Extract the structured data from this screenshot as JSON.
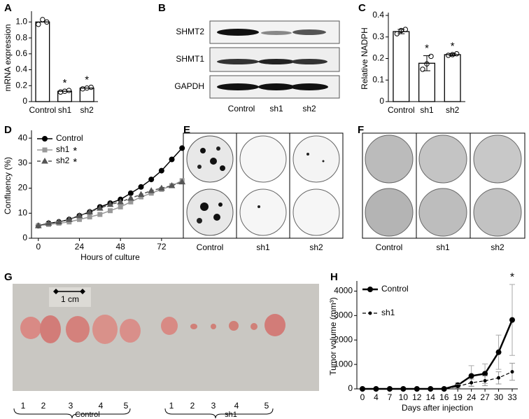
{
  "chart_data": [
    {
      "type": "bar",
      "panel": "A",
      "ylabel": "mRNA expression",
      "categories": [
        "Control",
        "sh1",
        "sh2"
      ],
      "values": [
        1.0,
        0.13,
        0.17
      ],
      "points": [
        [
          0.97,
          1.03,
          1.0
        ],
        [
          0.12,
          0.13,
          0.14
        ],
        [
          0.16,
          0.17,
          0.18
        ]
      ],
      "significance": [
        null,
        "*",
        "*"
      ],
      "color": "#ffffff",
      "ylim": [
        0,
        1.1
      ],
      "yticks": [
        0,
        0.2,
        0.4,
        0.6,
        0.8,
        {
          "value": 1,
          "label": "1.0"
        }
      ]
    },
    {
      "type": "bar",
      "panel": "C",
      "ylabel": "Relative NADPH",
      "categories": [
        "Control",
        "sh1",
        "sh2"
      ],
      "values": [
        0.325,
        0.178,
        0.218
      ],
      "errors": [
        0.01,
        0.035,
        0.005
      ],
      "points": [
        [
          0.315,
          0.33,
          0.335
        ],
        [
          0.15,
          0.175,
          0.21
        ],
        [
          0.215,
          0.218,
          0.222
        ]
      ],
      "significance": [
        null,
        "*",
        "*"
      ],
      "color": "#ffffff",
      "ylim": [
        0,
        0.4
      ],
      "yticks": [
        0,
        0.1,
        0.2,
        0.3,
        0.4
      ]
    },
    {
      "type": "line",
      "panel": "D",
      "xlabel": "Hours of culture",
      "ylabel": "Confluency (%)",
      "x": [
        0,
        6,
        12,
        18,
        24,
        30,
        36,
        42,
        48,
        54,
        60,
        66,
        72,
        78,
        84
      ],
      "xlim": [
        -4,
        88
      ],
      "xticks": [
        0,
        24,
        48,
        72
      ],
      "ylim": [
        0,
        42
      ],
      "yticks": [
        0,
        10,
        20,
        30,
        40
      ],
      "legend": "upper left",
      "series": [
        {
          "name": "Control",
          "color": "#000000",
          "marker": "circle",
          "values": [
            5,
            6,
            6.5,
            7.5,
            9,
            10.5,
            12.5,
            14,
            15.5,
            18,
            20.5,
            23.5,
            27,
            31.5,
            36
          ]
        },
        {
          "name": "sh1",
          "note": "*",
          "color": "#999999",
          "marker": "square",
          "values": [
            5,
            5.5,
            6,
            6.5,
            7.5,
            8.5,
            9.5,
            11,
            12.5,
            14.5,
            16.5,
            18,
            19.5,
            21,
            23
          ]
        },
        {
          "name": "sh2",
          "note": "*",
          "color": "#555555",
          "marker": "triangle",
          "dash": true,
          "values": [
            5,
            6,
            6.5,
            7.5,
            9,
            10.5,
            12,
            13.5,
            14.5,
            16,
            17.5,
            19,
            20,
            21,
            22.5
          ]
        }
      ]
    },
    {
      "type": "line",
      "panel": "H",
      "xlabel": "Days after injection",
      "ylabel": "Tumor volume (mm³)",
      "categories": [
        "0",
        "4",
        "7",
        "10",
        "12",
        "14",
        "16",
        "19",
        "24",
        "27",
        "30",
        "33"
      ],
      "ylim": [
        0,
        4300
      ],
      "yticks": [
        0,
        1000,
        2000,
        3000,
        4000
      ],
      "legend": "upper left",
      "annotation": "*",
      "series": [
        {
          "name": "Control",
          "color": "#000000",
          "marker": "circle",
          "width": 2.5,
          "values": [
            0,
            0,
            0,
            0,
            0,
            0,
            0,
            150,
            530,
            620,
            1500,
            2820
          ],
          "errors": [
            0,
            0,
            0,
            0,
            0,
            0,
            0,
            100,
            420,
            400,
            700,
            1450
          ]
        },
        {
          "name": "sh1",
          "color": "#000000",
          "marker": "dot",
          "dash": true,
          "width": 1.2,
          "values": [
            0,
            0,
            0,
            0,
            0,
            0,
            0,
            100,
            250,
            330,
            450,
            700
          ],
          "errors": [
            0,
            0,
            0,
            0,
            0,
            0,
            0,
            80,
            150,
            200,
            250,
            350
          ]
        }
      ]
    }
  ],
  "panels": {
    "B": {
      "letter": "B",
      "rows": [
        "SHMT2",
        "SHMT1",
        "GAPDH"
      ],
      "lanes": [
        "Control",
        "sh1",
        "sh2"
      ]
    },
    "E": {
      "letter": "E",
      "lanes": [
        "Control",
        "sh1",
        "sh2"
      ]
    },
    "F": {
      "letter": "F",
      "lanes": [
        "Control",
        "sh1",
        "sh2"
      ]
    },
    "G": {
      "letter": "G",
      "scale": "1 cm",
      "numbers": [
        "1",
        "2",
        "3",
        "4",
        "5"
      ],
      "groups": [
        "Control",
        "sh1"
      ]
    }
  }
}
